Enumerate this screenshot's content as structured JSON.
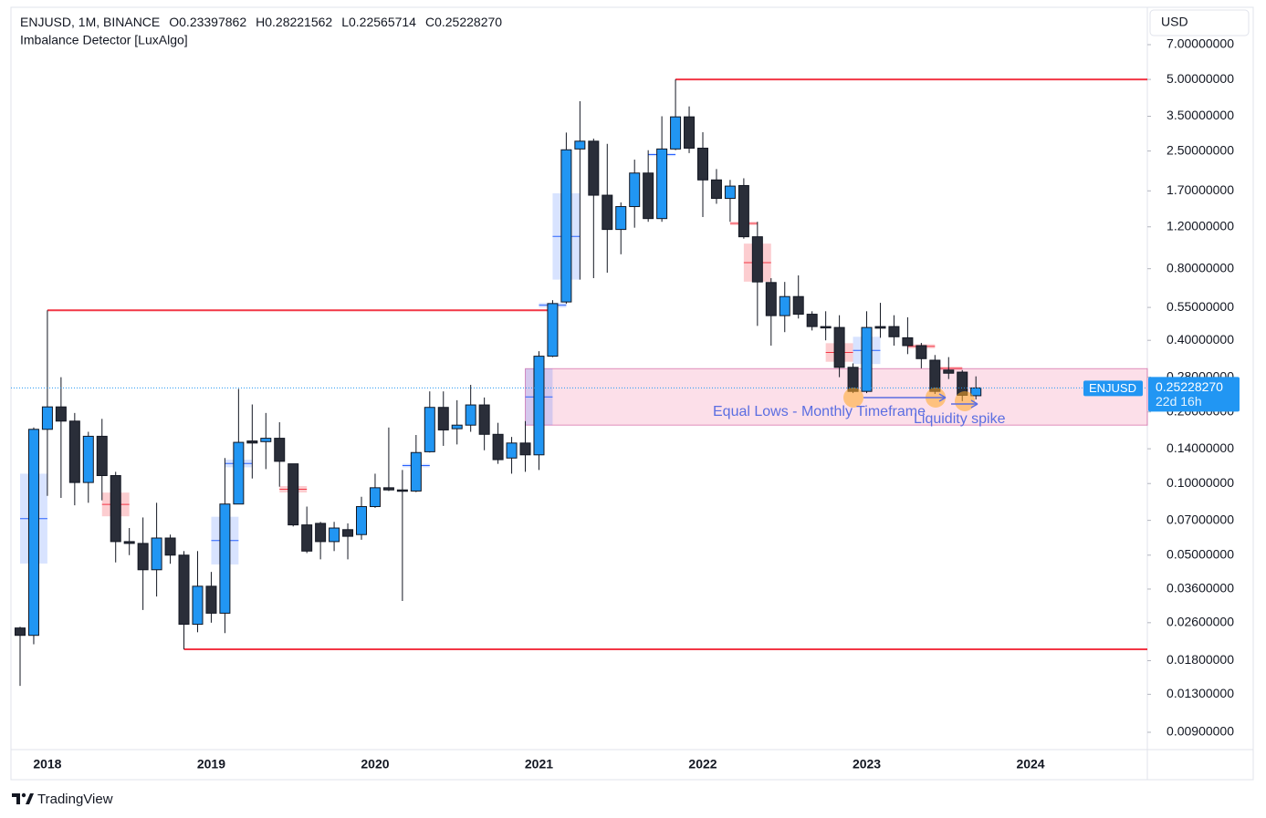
{
  "chart_data": {
    "type": "candlestick",
    "symbol": "ENJUSD, 1M, BINANCE",
    "ohlc_labels": [
      "O",
      "H",
      "L",
      "C"
    ],
    "ohlc_values": [
      "0.23397862",
      "0.28221562",
      "0.22565714",
      "0.25228270"
    ],
    "indicator": "Imbalance Detector [LuxAlgo]",
    "currency": "USD",
    "last_label": "ENJUSD",
    "last_price_label": "0.25228270",
    "countdown": "22d 16h",
    "brand": "TradingView",
    "log_scale": true,
    "grid": false,
    "up_color": "#2196f3",
    "down_color": "#2a2e39",
    "level_color": "#f23645",
    "categories": [
      null,
      null,
      "2018",
      null,
      null,
      null,
      null,
      null,
      null,
      null,
      null,
      null,
      null,
      null,
      "2019",
      null,
      null,
      null,
      null,
      null,
      null,
      null,
      null,
      null,
      null,
      null,
      "2020",
      null,
      null,
      null,
      null,
      null,
      null,
      null,
      null,
      null,
      null,
      null,
      "2021",
      null,
      null,
      null,
      null,
      null,
      null,
      null,
      null,
      null,
      null,
      null,
      "2022",
      null,
      null,
      null,
      null,
      null,
      null,
      null,
      null,
      null,
      null,
      null,
      "2023",
      null,
      null,
      null,
      null,
      null,
      null,
      null,
      null
    ],
    "future_labels": [
      "2024"
    ],
    "open": [
      0.0247,
      0.023,
      0.169,
      0.21,
      0.183,
      0.101,
      0.158,
      0.108,
      0.057,
      0.056,
      0.0434,
      0.059,
      0.05,
      0.0256,
      0.037,
      0.0285,
      0.082,
      0.151,
      0.15,
      0.155,
      0.121,
      0.067,
      0.068,
      0.057,
      0.064,
      0.061,
      0.08,
      0.096,
      0.094,
      0.093,
      0.136,
      0.209,
      0.17,
      0.176,
      0.214,
      0.161,
      0.128,
      0.148,
      0.132,
      0.343,
      0.58,
      2.55,
      2.75,
      1.63,
      1.17,
      1.46,
      2.02,
      1.3,
      2.55,
      3.48,
      2.57,
      1.89,
      1.58,
      1.79,
      1.09,
      0.7,
      0.508,
      0.611,
      0.515,
      0.457,
      0.453,
      0.308,
      0.244,
      0.457,
      0.457,
      0.41,
      0.38,
      0.33,
      0.3,
      0.294,
      0.23397862
    ],
    "high": [
      0.025,
      0.172,
      0.535,
      0.28,
      0.198,
      0.165,
      0.187,
      0.112,
      0.065,
      0.072,
      0.083,
      0.061,
      0.052,
      0.052,
      0.0425,
      0.128,
      0.25,
      0.215,
      0.198,
      0.181,
      0.121,
      0.08,
      0.069,
      0.069,
      0.068,
      0.088,
      0.11,
      0.172,
      0.114,
      0.16,
      0.244,
      0.244,
      0.224,
      0.26,
      0.23,
      0.18,
      0.157,
      0.183,
      0.36,
      0.59,
      2.99,
      4.05,
      2.82,
      2.68,
      1.52,
      2.3,
      2.52,
      3.5,
      5.0,
      3.85,
      3.0,
      2.1,
      1.89,
      1.92,
      1.26,
      0.73,
      0.704,
      0.75,
      0.53,
      0.53,
      0.51,
      0.32,
      0.53,
      0.575,
      0.51,
      0.5,
      0.39,
      0.347,
      0.34,
      0.3,
      0.28221562
    ],
    "low": [
      0.0141,
      0.0211,
      0.0887,
      0.087,
      0.081,
      0.083,
      0.085,
      0.0466,
      0.05,
      0.0294,
      0.0335,
      0.046,
      0.0201,
      0.0237,
      0.026,
      0.0235,
      0.082,
      0.105,
      0.115,
      0.097,
      0.066,
      0.051,
      0.048,
      0.052,
      0.048,
      0.058,
      0.079,
      0.093,
      0.0321,
      0.092,
      0.135,
      0.144,
      0.146,
      0.165,
      0.138,
      0.121,
      0.11,
      0.112,
      0.114,
      0.34,
      0.57,
      0.72,
      0.73,
      0.77,
      0.92,
      1.19,
      1.26,
      1.26,
      2.52,
      2.45,
      1.32,
      1.5,
      1.26,
      1.07,
      0.46,
      0.38,
      0.433,
      0.494,
      0.44,
      0.4,
      0.28,
      0.24,
      0.24,
      0.41,
      0.38,
      0.35,
      0.305,
      0.238,
      0.275,
      0.222,
      0.22565714
    ],
    "close": [
      0.023,
      0.169,
      0.21,
      0.183,
      0.101,
      0.158,
      0.108,
      0.057,
      0.056,
      0.0434,
      0.059,
      0.05,
      0.0256,
      0.037,
      0.0285,
      0.082,
      0.149,
      0.148,
      0.155,
      0.124,
      0.067,
      0.052,
      0.057,
      0.065,
      0.06,
      0.08,
      0.096,
      0.094,
      0.093,
      0.135,
      0.209,
      0.168,
      0.176,
      0.214,
      0.161,
      0.126,
      0.148,
      0.132,
      0.343,
      0.571,
      2.53,
      2.75,
      1.63,
      1.17,
      1.46,
      2.02,
      1.3,
      2.55,
      3.48,
      2.57,
      1.89,
      1.58,
      1.78,
      1.09,
      0.704,
      0.508,
      0.611,
      0.515,
      0.457,
      0.453,
      0.308,
      0.244,
      0.453,
      0.45,
      0.414,
      0.38,
      0.335,
      0.244,
      0.291,
      0.235,
      0.2522827
    ],
    "imbalance": [
      null,
      [
        0.0461,
        0.11
      ],
      null,
      null,
      null,
      null,
      null,
      [
        0.0728,
        0.0916
      ],
      null,
      null,
      null,
      null,
      null,
      null,
      null,
      [
        0.0457,
        0.0725
      ],
      [
        0.117,
        0.126
      ],
      null,
      null,
      null,
      [
        0.0917,
        0.0976
      ],
      null,
      null,
      null,
      null,
      null,
      null,
      null,
      null,
      [
        0.117,
        0.121
      ],
      null,
      null,
      null,
      null,
      null,
      null,
      null,
      null,
      [
        0.176,
        0.304
      ],
      [
        0.55,
        0.575
      ],
      [
        0.72,
        1.66
      ],
      null,
      null,
      null,
      null,
      null,
      null,
      [
        2.38,
        2.45
      ],
      null,
      null,
      null,
      null,
      null,
      [
        1.22,
        1.26
      ],
      [
        0.706,
        1.02
      ],
      null,
      null,
      null,
      null,
      null,
      [
        0.325,
        0.389
      ],
      null,
      [
        0.318,
        0.414
      ],
      null,
      null,
      null,
      [
        0.37,
        0.385
      ],
      null,
      [
        0.3,
        0.31
      ],
      null,
      null
    ],
    "zone": [
      0.176,
      0.304
    ],
    "levels": [
      5.0,
      0.535,
      0.0201
    ],
    "annotations": [
      "Equal Lows - Monthly Timeframe",
      "Liquidity spike"
    ],
    "ylim": [
      0.00761,
      10.05
    ],
    "yticks": [
      {
        "value": 7,
        "label": "7.00000000"
      },
      {
        "value": 5,
        "label": "5.00000000"
      },
      {
        "value": 3.5,
        "label": "3.50000000"
      },
      {
        "value": 2.5,
        "label": "2.50000000"
      },
      {
        "value": 1.7,
        "label": "1.70000000"
      },
      {
        "value": 1.2,
        "label": "1.20000000"
      },
      {
        "value": 0.8,
        "label": "0.80000000"
      },
      {
        "value": 0.55,
        "label": "0.55000000"
      },
      {
        "value": 0.4,
        "label": "0.40000000"
      },
      {
        "value": 0.28,
        "label": "0.28000000"
      },
      {
        "value": 0.2,
        "label": "0.20000000"
      },
      {
        "value": 0.14,
        "label": "0.14000000"
      },
      {
        "value": 0.1,
        "label": "0.10000000"
      },
      {
        "value": 0.07,
        "label": "0.07000000"
      },
      {
        "value": 0.05,
        "label": "0.05000000"
      },
      {
        "value": 0.036,
        "label": "0.03600000"
      },
      {
        "value": 0.026,
        "label": "0.02600000"
      },
      {
        "value": 0.018,
        "label": "0.01800000"
      },
      {
        "value": 0.013,
        "label": "0.01300000"
      },
      {
        "value": 0.009,
        "label": "0.00900000"
      }
    ]
  }
}
